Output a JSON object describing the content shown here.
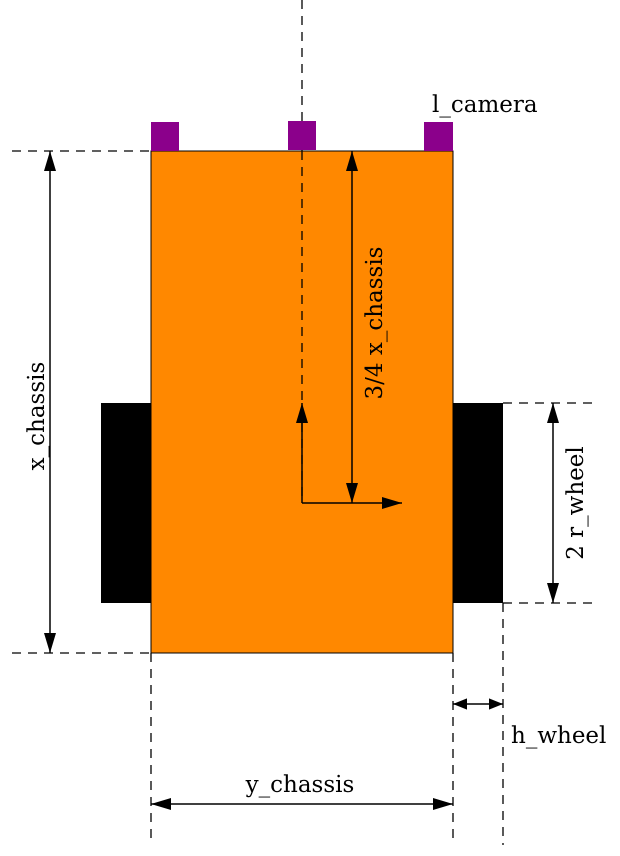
{
  "diagram": {
    "title": "",
    "labels": {
      "l_camera": "l_camera",
      "x_chassis": "x_chassis",
      "three_quarter_x_chassis": "3/4 x_chassis",
      "two_r_wheel": "2 r_wheel",
      "h_wheel": "h_wheel",
      "y_chassis": "y_chassis"
    },
    "colors": {
      "chassis": "#FF8800",
      "wheel": "#000000",
      "camera": "#8B008B",
      "line": "#000000"
    },
    "parts": [
      "chassis",
      "left-wheel",
      "right-wheel",
      "camera-left",
      "camera-center",
      "camera-right"
    ]
  }
}
